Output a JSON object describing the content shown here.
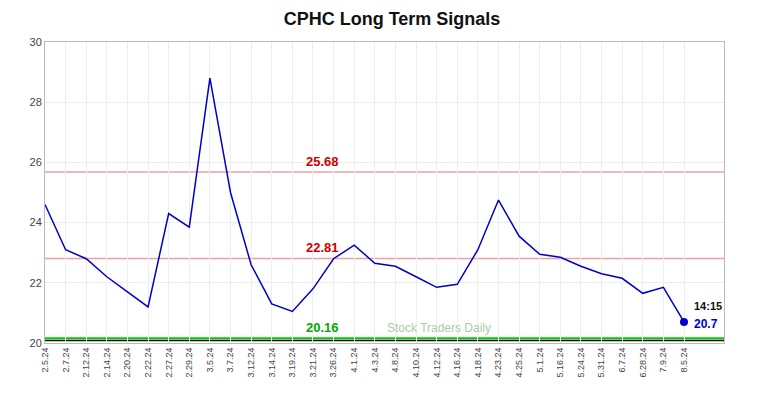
{
  "chart_data": {
    "type": "line",
    "title": "CPHC Long Term Signals",
    "categories": [
      "2.5.24",
      "2.7.24",
      "2.12.24",
      "2.14.24",
      "2.20.24",
      "2.22.24",
      "2.27.24",
      "2.29.24",
      "3.5.24",
      "3.7.24",
      "3.12.24",
      "3.14.24",
      "3.19.24",
      "3.21.24",
      "3.26.24",
      "4.1.24",
      "4.3.24",
      "4.8.24",
      "4.10.24",
      "4.12.24",
      "4.16.24",
      "4.18.24",
      "4.23.24",
      "4.25.24",
      "5.1.24",
      "5.16.24",
      "5.24.24",
      "5.31.24",
      "6.7.24",
      "6.28.24",
      "7.9.24",
      "8.5.24"
    ],
    "values": [
      24.6,
      23.1,
      22.8,
      22.2,
      21.7,
      21.2,
      24.3,
      23.85,
      28.8,
      25.0,
      22.6,
      21.3,
      21.05,
      21.8,
      22.8,
      23.25,
      22.65,
      22.55,
      22.2,
      21.85,
      21.95,
      23.1,
      24.75,
      23.55,
      22.95,
      22.85,
      22.55,
      22.3,
      22.15,
      21.65,
      21.85,
      20.7
    ],
    "color": "#0000cc",
    "ylim": [
      20,
      30
    ],
    "yticks": [
      20,
      22,
      24,
      26,
      28,
      30
    ],
    "grid": true,
    "hlines": [
      {
        "value": 25.68,
        "color": "#f0a0a0",
        "label": "25.68",
        "label_color": "#cc0000"
      },
      {
        "value": 22.81,
        "color": "#f0a0a0",
        "label": "22.81",
        "label_color": "#cc0000"
      },
      {
        "value": 20.16,
        "color": "#00cc00",
        "label": "20.16",
        "label_color": "#00aa00"
      },
      {
        "value": 20.08,
        "color": "#111111"
      }
    ],
    "watermark": {
      "text": "Stock Traders Daily",
      "color": "#aaccaa"
    },
    "last_point": {
      "marker": "circle",
      "color": "#0000cc",
      "time_label": "14:15",
      "time_label_color": "#111111",
      "value_label": "20.7",
      "value_label_color": "#0000cc"
    }
  }
}
